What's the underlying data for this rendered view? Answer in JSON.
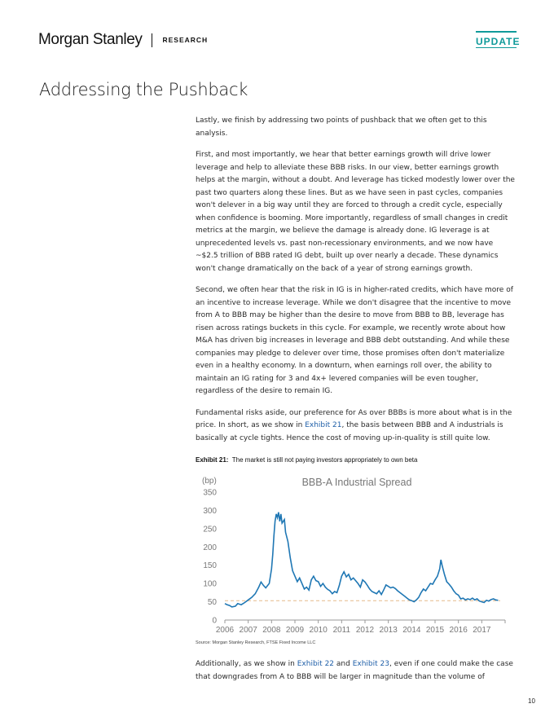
{
  "header": {
    "brand": "Morgan Stanley",
    "section": "RESEARCH",
    "tag": "UPDATE"
  },
  "title": "Addressing the Pushback",
  "paragraphs": [
    {
      "text": "Lastly, we finish by addressing two points of pushback that we often get to this analysis."
    },
    {
      "text": "First, and most importantly, we hear that better earnings growth will drive lower leverage and help to alleviate these BBB risks. In our view, better earnings growth helps at the margin, without a doubt. And leverage has ticked modestly lower over the past two quarters along these lines. But as we have seen in past cycles, companies won't delever in a big way until they are forced to through a credit cycle, especially when confidence is booming. More importantly, regardless of small changes in credit metrics at the margin, we believe the damage is already done. IG leverage is at unprecedented levels vs. past non-recessionary environments, and we now have ~$2.5 trillion of BBB rated IG debt, built up over nearly a decade. These dynamics won't change dramatically on the back of a year of strong earnings growth."
    },
    {
      "text": "Second, we often hear that the risk in IG is in higher-rated credits, which have more of an incentive to increase leverage. While we don't disagree that the incentive to move from A to BBB may be higher than the desire to move from BBB to BB, leverage has risen across ratings buckets in this cycle. For example, we recently wrote about how M&A has driven big increases in leverage and BBB debt outstanding. And while these companies may pledge to delever over time, those promises often don't materialize even in a healthy economy. In a downturn, when earnings roll over, the ability to maintain an IG rating for 3 and 4x+ levered companies will be even tougher, regardless of the desire to remain IG."
    },
    {
      "pre": "Fundamental risks aside, our preference for As over BBBs is more about what is in the price. In short, as we show in ",
      "link": "Exhibit 21",
      "post": ", the basis between BBB and A industrials is basically at cycle tights. Hence the cost of moving up-in-quality is still quite low."
    }
  ],
  "exhibit": {
    "label": "Exhibit 21:",
    "caption": "The market is still not paying investors appropriately to own beta"
  },
  "source": "Source: Morgan Stanley Research, FTSE Fixed Income LLC",
  "closing": {
    "pre": "Additionally, as we show in ",
    "link1": "Exhibit 22",
    "mid": " and ",
    "link2": "Exhibit 23",
    "post": ", even if one could make the case that downgrades from A to BBB will be larger in magnitude than the volume of"
  },
  "page_number": "10",
  "colors": {
    "line": "#1f77b4",
    "reference": "#e6b98a",
    "link": "#1f5fa8",
    "update": "#0f9a9a"
  },
  "chart_data": {
    "type": "line",
    "title": "BBB-A Industrial Spread",
    "ylabel": "(bp)",
    "xlabel": "",
    "ylim": [
      0,
      350
    ],
    "xlim": [
      2006,
      2018
    ],
    "yticks": [
      0,
      50,
      100,
      150,
      200,
      250,
      300,
      350
    ],
    "xticks": [
      "2006",
      "2007",
      "2008",
      "2009",
      "2010",
      "2011",
      "2012",
      "2013",
      "2014",
      "2015",
      "2016",
      "2017"
    ],
    "grid": false,
    "reference_line": 53,
    "series": [
      {
        "points": [
          [
            2006.0,
            45
          ],
          [
            2006.1,
            42
          ],
          [
            2006.2,
            40
          ],
          [
            2006.3,
            36
          ],
          [
            2006.45,
            38
          ],
          [
            2006.55,
            45
          ],
          [
            2006.7,
            42
          ],
          [
            2006.85,
            48
          ],
          [
            2007.0,
            55
          ],
          [
            2007.15,
            62
          ],
          [
            2007.3,
            72
          ],
          [
            2007.45,
            90
          ],
          [
            2007.55,
            104
          ],
          [
            2007.65,
            95
          ],
          [
            2007.75,
            88
          ],
          [
            2007.9,
            100
          ],
          [
            2008.0,
            140
          ],
          [
            2008.05,
            180
          ],
          [
            2008.1,
            230
          ],
          [
            2008.15,
            270
          ],
          [
            2008.2,
            290
          ],
          [
            2008.25,
            280
          ],
          [
            2008.3,
            295
          ],
          [
            2008.35,
            270
          ],
          [
            2008.4,
            290
          ],
          [
            2008.45,
            265
          ],
          [
            2008.55,
            275
          ],
          [
            2008.6,
            240
          ],
          [
            2008.7,
            215
          ],
          [
            2008.8,
            170
          ],
          [
            2008.9,
            135
          ],
          [
            2009.0,
            120
          ],
          [
            2009.1,
            105
          ],
          [
            2009.2,
            115
          ],
          [
            2009.3,
            100
          ],
          [
            2009.4,
            85
          ],
          [
            2009.5,
            90
          ],
          [
            2009.6,
            82
          ],
          [
            2009.7,
            110
          ],
          [
            2009.8,
            120
          ],
          [
            2009.9,
            108
          ],
          [
            2010.0,
            105
          ],
          [
            2010.1,
            92
          ],
          [
            2010.2,
            100
          ],
          [
            2010.3,
            90
          ],
          [
            2010.4,
            84
          ],
          [
            2010.5,
            80
          ],
          [
            2010.6,
            72
          ],
          [
            2010.7,
            78
          ],
          [
            2010.8,
            75
          ],
          [
            2010.9,
            95
          ],
          [
            2011.0,
            120
          ],
          [
            2011.1,
            132
          ],
          [
            2011.2,
            118
          ],
          [
            2011.3,
            125
          ],
          [
            2011.4,
            110
          ],
          [
            2011.5,
            115
          ],
          [
            2011.6,
            108
          ],
          [
            2011.7,
            100
          ],
          [
            2011.8,
            90
          ],
          [
            2011.9,
            110
          ],
          [
            2012.0,
            104
          ],
          [
            2012.1,
            95
          ],
          [
            2012.2,
            85
          ],
          [
            2012.3,
            78
          ],
          [
            2012.4,
            75
          ],
          [
            2012.5,
            72
          ],
          [
            2012.6,
            80
          ],
          [
            2012.7,
            70
          ],
          [
            2012.8,
            82
          ],
          [
            2012.9,
            96
          ],
          [
            2013.0,
            92
          ],
          [
            2013.1,
            88
          ],
          [
            2013.2,
            90
          ],
          [
            2013.3,
            86
          ],
          [
            2013.4,
            80
          ],
          [
            2013.5,
            75
          ],
          [
            2013.6,
            70
          ],
          [
            2013.7,
            65
          ],
          [
            2013.8,
            60
          ],
          [
            2013.9,
            55
          ],
          [
            2014.0,
            53
          ],
          [
            2014.1,
            50
          ],
          [
            2014.2,
            55
          ],
          [
            2014.3,
            62
          ],
          [
            2014.4,
            75
          ],
          [
            2014.5,
            85
          ],
          [
            2014.6,
            80
          ],
          [
            2014.7,
            90
          ],
          [
            2014.8,
            100
          ],
          [
            2014.9,
            98
          ],
          [
            2015.0,
            110
          ],
          [
            2015.1,
            120
          ],
          [
            2015.2,
            140
          ],
          [
            2015.25,
            165
          ],
          [
            2015.3,
            150
          ],
          [
            2015.4,
            125
          ],
          [
            2015.5,
            105
          ],
          [
            2015.6,
            98
          ],
          [
            2015.7,
            90
          ],
          [
            2015.8,
            80
          ],
          [
            2015.9,
            72
          ],
          [
            2016.0,
            68
          ],
          [
            2016.1,
            58
          ],
          [
            2016.2,
            60
          ],
          [
            2016.3,
            55
          ],
          [
            2016.4,
            58
          ],
          [
            2016.5,
            56
          ],
          [
            2016.6,
            60
          ],
          [
            2016.7,
            55
          ],
          [
            2016.8,
            58
          ],
          [
            2016.9,
            52
          ],
          [
            2017.0,
            50
          ],
          [
            2017.1,
            48
          ],
          [
            2017.2,
            54
          ],
          [
            2017.3,
            52
          ],
          [
            2017.4,
            56
          ],
          [
            2017.5,
            58
          ],
          [
            2017.6,
            55
          ],
          [
            2017.7,
            54
          ]
        ]
      }
    ]
  }
}
